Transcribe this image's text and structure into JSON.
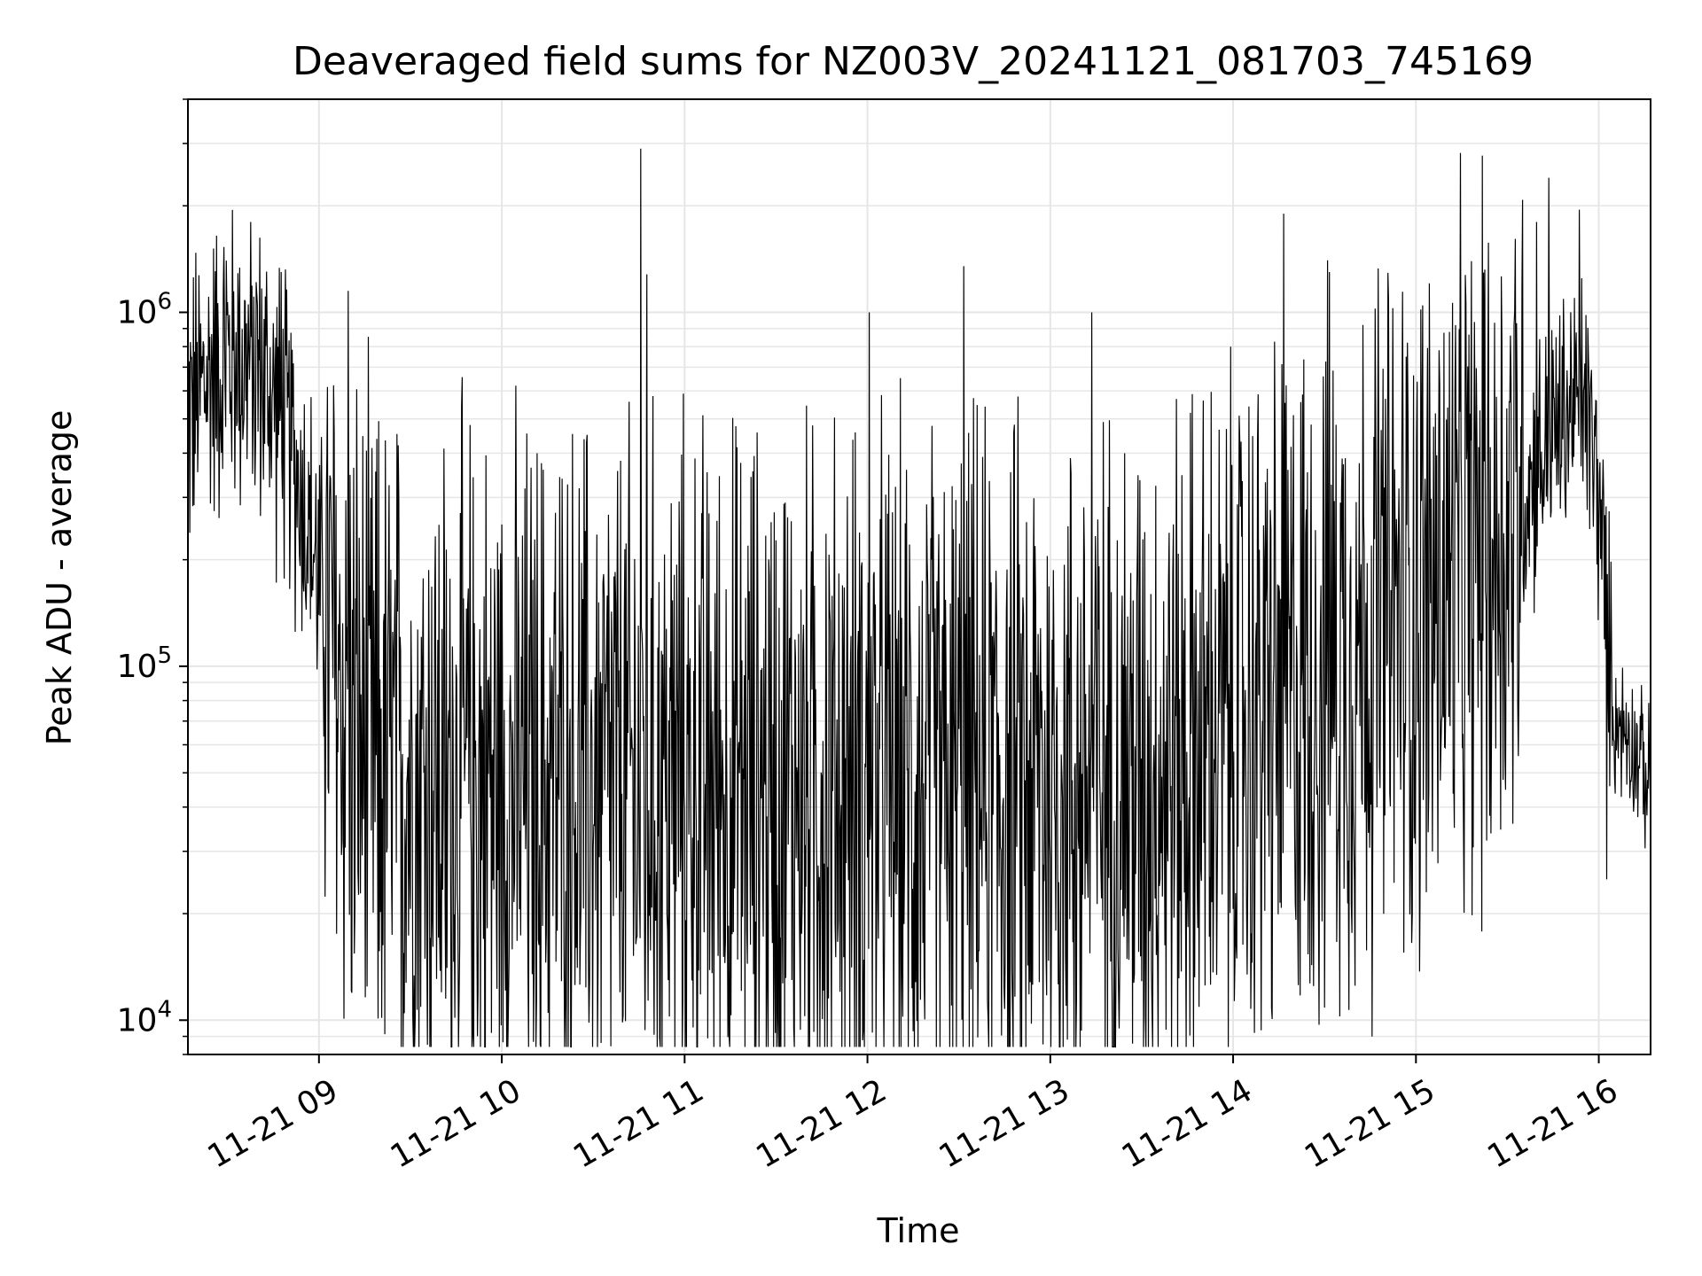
{
  "chart_data": {
    "type": "line",
    "title": "Deaveraged field sums for NZ003V_20241121_081703_745169",
    "xlabel": "Time",
    "ylabel": "Peak ADU - average",
    "yscale": "log",
    "ylim": [
      8000,
      4000000
    ],
    "xlim": [
      "2024-11-21 08:17",
      "2024-11-21 16:17"
    ],
    "grid": true,
    "line_color": "#000000",
    "grid_color": "#e6e6e6",
    "x_ticks": [
      {
        "value": "2024-11-21 09:00",
        "label": "11-21 09"
      },
      {
        "value": "2024-11-21 10:00",
        "label": "11-21 10"
      },
      {
        "value": "2024-11-21 11:00",
        "label": "11-21 11"
      },
      {
        "value": "2024-11-21 12:00",
        "label": "11-21 12"
      },
      {
        "value": "2024-11-21 13:00",
        "label": "11-21 13"
      },
      {
        "value": "2024-11-21 14:00",
        "label": "11-21 14"
      },
      {
        "value": "2024-11-21 15:00",
        "label": "11-21 15"
      },
      {
        "value": "2024-11-21 16:00",
        "label": "11-21 16"
      }
    ],
    "y_ticks": [
      {
        "value": 10000,
        "base": "10",
        "exp": "4"
      },
      {
        "value": 100000,
        "base": "10",
        "exp": "5"
      },
      {
        "value": 1000000,
        "base": "10",
        "exp": "6"
      }
    ],
    "series": [
      {
        "x": [
          "2024-11-21 08:17",
          "2024-11-21 08:25",
          "2024-11-21 08:32",
          "2024-11-21 08:40",
          "2024-11-21 08:48",
          "2024-11-21 08:55",
          "2024-11-21 09:05",
          "2024-11-21 09:15",
          "2024-11-21 09:25",
          "2024-11-21 09:35",
          "2024-11-21 09:45",
          "2024-11-21 10:00",
          "2024-11-21 10:15",
          "2024-11-21 10:30",
          "2024-11-21 10:45",
          "2024-11-21 11:00",
          "2024-11-21 11:15",
          "2024-11-21 11:30",
          "2024-11-21 11:45",
          "2024-11-21 12:00",
          "2024-11-21 12:15",
          "2024-11-21 12:30",
          "2024-11-21 12:45",
          "2024-11-21 13:00",
          "2024-11-21 13:15",
          "2024-11-21 13:30",
          "2024-11-21 13:45",
          "2024-11-21 14:00",
          "2024-11-21 14:15",
          "2024-11-21 14:30",
          "2024-11-21 14:45",
          "2024-11-21 15:00",
          "2024-11-21 15:15",
          "2024-11-21 15:30",
          "2024-11-21 15:45",
          "2024-11-21 15:55",
          "2024-11-21 16:00",
          "2024-11-21 16:05",
          "2024-11-21 16:10",
          "2024-11-21 16:17"
        ],
        "y": [
          500000,
          700000,
          750000,
          700000,
          500000,
          300000,
          100000,
          55000,
          50000,
          48000,
          47000,
          46000,
          46000,
          46000,
          46000,
          46000,
          46000,
          46000,
          46000,
          46000,
          45000,
          45000,
          46000,
          47000,
          48000,
          50000,
          55000,
          65000,
          80000,
          100000,
          120000,
          150000,
          180000,
          250000,
          450000,
          600000,
          300000,
          70000,
          65000,
          45000
        ],
        "spikes": [
          [
            "2024-11-21 08:30",
            1400000
          ],
          [
            "2024-11-21 08:38",
            1800000
          ],
          [
            "2024-11-21 08:48",
            1300000
          ],
          [
            "2024-11-21 09:10",
            1150000
          ],
          [
            "2024-11-21 10:48",
            1280000
          ],
          [
            "2024-11-21 10:46",
            2900000
          ],
          [
            "2024-11-21 12:01",
            1000000
          ],
          [
            "2024-11-21 12:32",
            1350000
          ],
          [
            "2024-11-21 13:14",
            1000000
          ],
          [
            "2024-11-21 14:17",
            1900000
          ],
          [
            "2024-11-21 14:32",
            1300000
          ],
          [
            "2024-11-21 14:48",
            1330000
          ],
          [
            "2024-11-21 15:23",
            1320000
          ],
          [
            "2024-11-21 15:44",
            2400000
          ],
          [
            "2024-11-21 15:54",
            1950000
          ],
          [
            "2024-11-21 15:40",
            1800000
          ],
          [
            "2024-11-21 09:42",
            11500
          ],
          [
            "2024-11-21 12:28",
            11000
          ],
          [
            "2024-11-21 12:48",
            10800
          ],
          [
            "2024-11-21 13:28",
            13500
          ],
          [
            "2024-11-21 16:03",
            25000
          ]
        ]
      }
    ]
  }
}
